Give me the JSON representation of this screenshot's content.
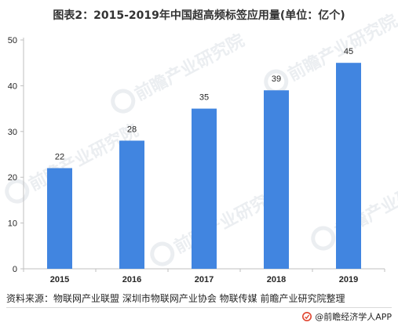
{
  "title": "图表2：2015-2019年中国超高频标签应用量(单位：亿个)",
  "source": "资料来源：物联网产业联盟 深圳市物联网产业协会 物联传媒 前瞻产业研究院整理",
  "credit": "@前瞻经济学人APP",
  "watermark": {
    "text": "前瞻产业研究院",
    "logo_icon": "qianzhan-logo-icon"
  },
  "colors": {
    "bar": "#4185e0",
    "axis": "#bfbfbf",
    "text": "#262626",
    "watermark": "#c8cfd8"
  },
  "chart_data": {
    "type": "bar",
    "categories": [
      "2015",
      "2016",
      "2017",
      "2018",
      "2019"
    ],
    "values": [
      22,
      28,
      35,
      39,
      45
    ],
    "data_labels": [
      "22",
      "28",
      "35",
      "39",
      "45"
    ],
    "title": "图表2：2015-2019年中国超高频标签应用量(单位：亿个)",
    "xlabel": "",
    "ylabel": "",
    "ylim": [
      0,
      50
    ],
    "yticks": [
      0,
      10,
      20,
      30,
      40,
      50
    ],
    "grid": false,
    "legend": "none"
  }
}
